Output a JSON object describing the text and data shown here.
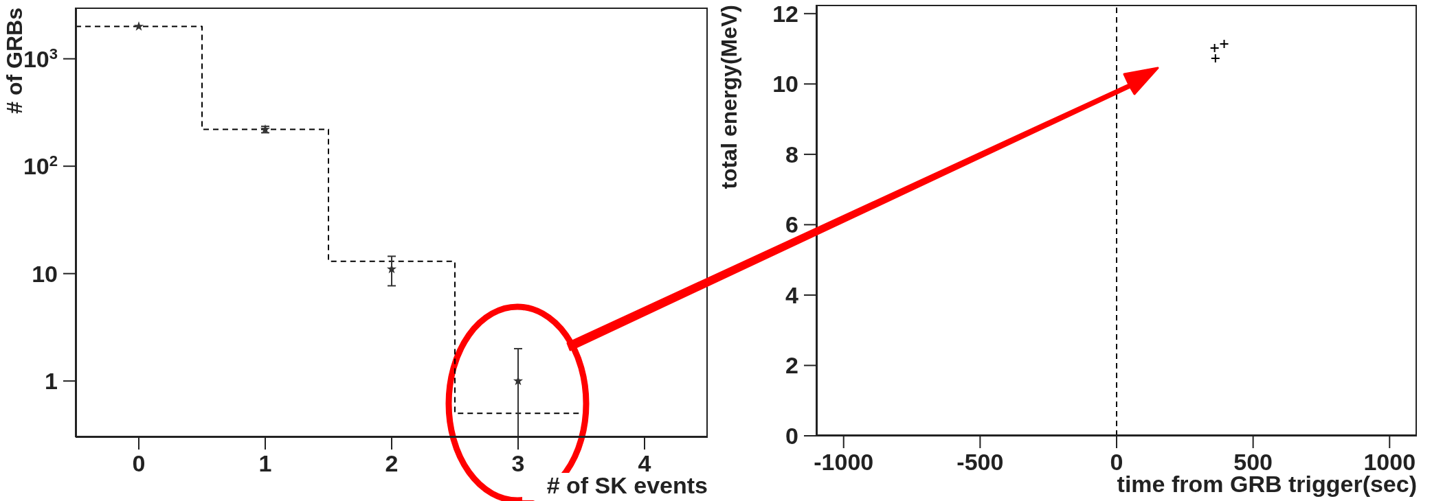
{
  "chart_data": [
    {
      "type": "histogram",
      "ylabel": "# of GRBs",
      "xlabel": "# of SK events",
      "log": "y",
      "xlim": [
        -0.5,
        4.5
      ],
      "xticks": [
        0,
        1,
        2,
        3,
        4
      ],
      "ylim": [
        0.3,
        3000
      ],
      "yticks": [
        1,
        10,
        {
          "value": 100,
          "label": "10$^{2}$"
        },
        {
          "value": 1000,
          "label": "10$^{3}$"
        }
      ],
      "series": [
        {
          "color": "#000000",
          "line_style": "dashed",
          "bins": [
            -0.5,
            0.5,
            1.5,
            2.5,
            3.5
          ],
          "values": [
            2000,
            220,
            13,
            0.5
          ]
        },
        {
          "type": "scatter",
          "color": "#333333",
          "marker": "star",
          "x": [
            0,
            1,
            2,
            3
          ],
          "values": [
            2000,
            220,
            11,
            1
          ],
          "errors": [
            null,
            15,
            [
              7.7,
              14.5
            ],
            [
              0.3,
              2
            ]
          ]
        }
      ]
    },
    {
      "type": "scatter",
      "xlabel": "time from GRB trigger(sec)",
      "ylabel": "total energy(MeV)",
      "marker": "cross",
      "xlim": [
        -1100,
        1100
      ],
      "xticks": [
        -1000,
        -500,
        0,
        500,
        1000
      ],
      "ylim": [
        0,
        12.25
      ],
      "yticks": [
        0,
        2,
        4,
        6,
        8,
        10,
        12
      ],
      "series": [
        {
          "color": "#000000",
          "x": [
            359,
            394,
            362
          ],
          "values": [
            11.02,
            11.14,
            10.73
          ]
        }
      ],
      "ref_lines": [
        {
          "axis": "x",
          "value": 0,
          "line_style": "dashed",
          "color": "#000000"
        }
      ]
    }
  ]
}
